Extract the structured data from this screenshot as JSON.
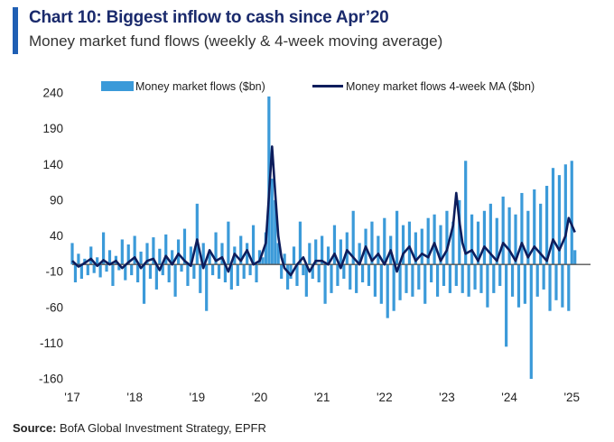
{
  "header": {
    "title": "Chart 10: Biggest inflow to cash since Apr’20",
    "subtitle": "Money market fund flows (weekly & 4-week moving average)"
  },
  "source": {
    "label": "Source:",
    "text": "BofA Global Investment Strategy, EPFR"
  },
  "colors": {
    "weekly": "#3b9ad9",
    "ma": "#0d1d5c",
    "zero_line": "#555555",
    "title": "#1a2a6c",
    "accent": "#1f5fb4"
  },
  "chart_data": {
    "type": "line",
    "title": "Chart 10: Biggest inflow to cash since Apr’20",
    "subtitle": "Money market fund flows (weekly & 4-week moving average)",
    "xlabel": "",
    "ylabel": "",
    "ylim": [
      -160,
      240
    ],
    "xlim": [
      2017.0,
      2025.3
    ],
    "y_ticks": [
      240,
      190,
      140,
      90,
      40,
      -10,
      -60,
      -110,
      -160
    ],
    "x_ticks": [
      {
        "label": "'17",
        "value": 2017
      },
      {
        "label": "'18",
        "value": 2018
      },
      {
        "label": "'19",
        "value": 2019
      },
      {
        "label": "'20",
        "value": 2020
      },
      {
        "label": "'21",
        "value": 2021
      },
      {
        "label": "'22",
        "value": 2022
      },
      {
        "label": "'23",
        "value": 2023
      },
      {
        "label": "'24",
        "value": 2024
      },
      {
        "label": "'25",
        "value": 2025
      }
    ],
    "reference_line": 0,
    "legend_position": "top",
    "series": [
      {
        "name": "Money market flows ($bn)",
        "style": "bar",
        "x": [
          2017.0,
          2017.05,
          2017.1,
          2017.15,
          2017.2,
          2017.25,
          2017.3,
          2017.35,
          2017.4,
          2017.45,
          2017.5,
          2017.55,
          2017.6,
          2017.65,
          2017.7,
          2017.75,
          2017.8,
          2017.85,
          2017.9,
          2017.95,
          2018.0,
          2018.05,
          2018.1,
          2018.15,
          2018.2,
          2018.25,
          2018.3,
          2018.35,
          2018.4,
          2018.45,
          2018.5,
          2018.55,
          2018.6,
          2018.65,
          2018.7,
          2018.75,
          2018.8,
          2018.85,
          2018.9,
          2018.95,
          2019.0,
          2019.05,
          2019.1,
          2019.15,
          2019.2,
          2019.25,
          2019.3,
          2019.35,
          2019.4,
          2019.45,
          2019.5,
          2019.55,
          2019.6,
          2019.65,
          2019.7,
          2019.75,
          2019.8,
          2019.85,
          2019.9,
          2019.95,
          2020.0,
          2020.05,
          2020.1,
          2020.15,
          2020.2,
          2020.25,
          2020.3,
          2020.35,
          2020.4,
          2020.45,
          2020.5,
          2020.55,
          2020.6,
          2020.65,
          2020.7,
          2020.75,
          2020.8,
          2020.85,
          2020.9,
          2020.95,
          2021.0,
          2021.05,
          2021.1,
          2021.15,
          2021.2,
          2021.25,
          2021.3,
          2021.35,
          2021.4,
          2021.45,
          2021.5,
          2021.55,
          2021.6,
          2021.65,
          2021.7,
          2021.75,
          2021.8,
          2021.85,
          2021.9,
          2021.95,
          2022.0,
          2022.05,
          2022.1,
          2022.15,
          2022.2,
          2022.25,
          2022.3,
          2022.35,
          2022.4,
          2022.45,
          2022.5,
          2022.55,
          2022.6,
          2022.65,
          2022.7,
          2022.75,
          2022.8,
          2022.85,
          2022.9,
          2022.95,
          2023.0,
          2023.05,
          2023.1,
          2023.15,
          2023.2,
          2023.25,
          2023.3,
          2023.35,
          2023.4,
          2023.45,
          2023.5,
          2023.55,
          2023.6,
          2023.65,
          2023.7,
          2023.75,
          2023.8,
          2023.85,
          2023.9,
          2023.95,
          2024.0,
          2024.05,
          2024.1,
          2024.15,
          2024.2,
          2024.25,
          2024.3,
          2024.35,
          2024.4,
          2024.45,
          2024.5,
          2024.55,
          2024.6,
          2024.65,
          2024.7,
          2024.75,
          2024.8,
          2024.85,
          2024.9,
          2024.95,
          2025.0,
          2025.05
        ],
        "values": [
          30,
          -25,
          15,
          -20,
          8,
          -15,
          25,
          -12,
          10,
          -18,
          45,
          -10,
          20,
          -30,
          12,
          -8,
          35,
          -22,
          28,
          -15,
          40,
          -25,
          18,
          -55,
          30,
          -20,
          38,
          -35,
          22,
          -15,
          42,
          -25,
          20,
          -45,
          35,
          -10,
          50,
          -30,
          25,
          -20,
          85,
          -40,
          30,
          -65,
          20,
          -15,
          45,
          -20,
          30,
          -25,
          60,
          -35,
          25,
          -30,
          40,
          -20,
          30,
          -15,
          55,
          -25,
          20,
          10,
          45,
          235,
          120,
          90,
          30,
          -20,
          15,
          -35,
          -20,
          25,
          -30,
          60,
          -15,
          -45,
          30,
          -20,
          35,
          -25,
          40,
          -55,
          25,
          -40,
          55,
          -30,
          35,
          -20,
          45,
          -35,
          75,
          -40,
          30,
          -25,
          50,
          -30,
          60,
          -45,
          40,
          -55,
          65,
          -75,
          40,
          -65,
          75,
          -50,
          55,
          -40,
          60,
          -45,
          45,
          -35,
          50,
          -55,
          65,
          -25,
          70,
          -45,
          55,
          -30,
          75,
          -40,
          60,
          -30,
          90,
          -40,
          145,
          -45,
          70,
          -35,
          60,
          -40,
          75,
          -60,
          85,
          -40,
          65,
          -30,
          95,
          -115,
          80,
          -45,
          70,
          -60,
          100,
          -55,
          75,
          -160,
          105,
          -45,
          85,
          -35,
          110,
          -65,
          135,
          -50,
          125,
          -60,
          140,
          -65,
          145,
          20
        ]
      },
      {
        "name": "Money market flows 4-week MA ($bn)",
        "style": "line",
        "x": [
          2017.0,
          2017.1,
          2017.2,
          2017.3,
          2017.4,
          2017.5,
          2017.6,
          2017.7,
          2017.8,
          2017.9,
          2018.0,
          2018.1,
          2018.2,
          2018.3,
          2018.4,
          2018.5,
          2018.6,
          2018.7,
          2018.8,
          2018.9,
          2019.0,
          2019.1,
          2019.2,
          2019.3,
          2019.4,
          2019.5,
          2019.6,
          2019.7,
          2019.8,
          2019.9,
          2020.0,
          2020.1,
          2020.15,
          2020.2,
          2020.25,
          2020.3,
          2020.35,
          2020.4,
          2020.5,
          2020.6,
          2020.7,
          2020.8,
          2020.9,
          2021.0,
          2021.1,
          2021.2,
          2021.3,
          2021.4,
          2021.5,
          2021.6,
          2021.7,
          2021.8,
          2021.9,
          2022.0,
          2022.1,
          2022.2,
          2022.3,
          2022.4,
          2022.5,
          2022.6,
          2022.7,
          2022.8,
          2022.9,
          2023.0,
          2023.1,
          2023.15,
          2023.2,
          2023.25,
          2023.3,
          2023.4,
          2023.5,
          2023.6,
          2023.7,
          2023.8,
          2023.9,
          2024.0,
          2024.1,
          2024.2,
          2024.3,
          2024.4,
          2024.5,
          2024.6,
          2024.7,
          2024.8,
          2024.9,
          2024.95,
          2025.0,
          2025.05
        ],
        "values": [
          5,
          -3,
          2,
          8,
          -2,
          6,
          0,
          5,
          -5,
          3,
          10,
          -5,
          5,
          8,
          -8,
          12,
          0,
          15,
          5,
          -2,
          35,
          -5,
          20,
          5,
          10,
          -10,
          15,
          5,
          20,
          0,
          5,
          30,
          95,
          165,
          100,
          40,
          10,
          -5,
          -15,
          0,
          10,
          -10,
          5,
          5,
          0,
          15,
          -5,
          20,
          10,
          0,
          25,
          5,
          15,
          0,
          20,
          -10,
          15,
          25,
          5,
          15,
          10,
          30,
          5,
          20,
          55,
          100,
          60,
          30,
          15,
          20,
          5,
          25,
          15,
          5,
          30,
          20,
          5,
          30,
          10,
          25,
          15,
          5,
          35,
          20,
          40,
          65,
          55,
          45
        ]
      }
    ]
  }
}
